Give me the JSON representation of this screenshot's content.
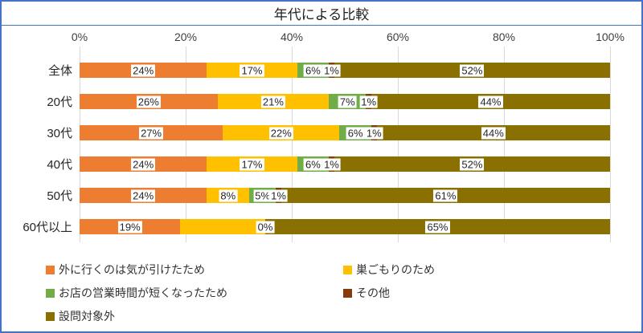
{
  "title": "年代による比較",
  "frame": {
    "border_color": "#4472C4",
    "background": "#FFFFFF"
  },
  "chart_data": {
    "type": "bar",
    "orientation": "horizontal-stacked",
    "title": "年代による比較",
    "grid": "vertical-on",
    "label_background": "#FFFFFF",
    "gridline_color": "#D9D9D9",
    "x_axis": {
      "position": "top",
      "range": [
        0,
        100
      ],
      "ticks": [
        "0%",
        "20%",
        "40%",
        "60%",
        "80%",
        "100%"
      ]
    },
    "categories": [
      "全体",
      "20代",
      "30代",
      "40代",
      "50代",
      "60代以上"
    ],
    "series": [
      {
        "name": "外に行くのは気が引けたため",
        "color": "#ED7D31",
        "values": [
          24,
          26,
          27,
          24,
          24,
          19
        ],
        "labels": [
          "24%",
          "26%",
          "27%",
          "24%",
          "24%",
          "19%"
        ]
      },
      {
        "name": "巣ごもりのため",
        "color": "#FFC000",
        "values": [
          17,
          21,
          22,
          17,
          8,
          16
        ],
        "labels": [
          "17%",
          "21%",
          "22%",
          "17%",
          "8%",
          ""
        ]
      },
      {
        "name": "お店の営業時間が短くなったため",
        "color": "#70AD47",
        "values": [
          6,
          7,
          6,
          6,
          5,
          0
        ],
        "labels": [
          "6%",
          "7%",
          "6%",
          "6%",
          "5%",
          "0%"
        ]
      },
      {
        "name": "その他",
        "color": "#843C0C",
        "values": [
          1,
          1,
          1,
          1,
          1,
          0
        ],
        "labels": [
          "1%",
          "1%",
          "1%",
          "1%",
          "1%",
          ""
        ]
      },
      {
        "name": "設問対象外",
        "color": "#8A7000",
        "values": [
          52,
          44,
          44,
          52,
          61,
          65
        ],
        "labels": [
          "52%",
          "44%",
          "44%",
          "52%",
          "61%",
          "65%"
        ]
      }
    ],
    "legend": {
      "position": "bottom",
      "columns": 2
    }
  }
}
